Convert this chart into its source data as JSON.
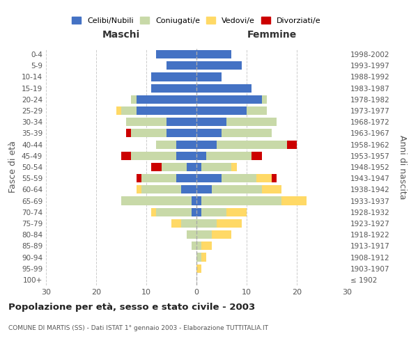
{
  "age_groups": [
    "100+",
    "95-99",
    "90-94",
    "85-89",
    "80-84",
    "75-79",
    "70-74",
    "65-69",
    "60-64",
    "55-59",
    "50-54",
    "45-49",
    "40-44",
    "35-39",
    "30-34",
    "25-29",
    "20-24",
    "15-19",
    "10-14",
    "5-9",
    "0-4"
  ],
  "birth_years": [
    "≤ 1902",
    "1903-1907",
    "1908-1912",
    "1913-1917",
    "1918-1922",
    "1923-1927",
    "1928-1932",
    "1933-1937",
    "1938-1942",
    "1943-1947",
    "1948-1952",
    "1953-1957",
    "1958-1962",
    "1963-1967",
    "1968-1972",
    "1973-1977",
    "1978-1982",
    "1983-1987",
    "1988-1992",
    "1993-1997",
    "1998-2002"
  ],
  "maschi": {
    "celibi": [
      0,
      0,
      0,
      0,
      0,
      0,
      1,
      1,
      3,
      4,
      2,
      4,
      4,
      6,
      6,
      12,
      12,
      9,
      9,
      6,
      8
    ],
    "coniugati": [
      0,
      0,
      0,
      1,
      2,
      3,
      7,
      14,
      8,
      7,
      5,
      9,
      4,
      7,
      8,
      3,
      1,
      0,
      0,
      0,
      0
    ],
    "vedovi": [
      0,
      0,
      0,
      0,
      0,
      2,
      1,
      0,
      1,
      0,
      0,
      0,
      0,
      0,
      0,
      1,
      0,
      0,
      0,
      0,
      0
    ],
    "divorziati": [
      0,
      0,
      0,
      0,
      0,
      0,
      0,
      0,
      0,
      1,
      2,
      2,
      0,
      1,
      0,
      0,
      0,
      0,
      0,
      0,
      0
    ]
  },
  "femmine": {
    "celibi": [
      0,
      0,
      0,
      0,
      0,
      0,
      1,
      1,
      3,
      5,
      1,
      2,
      4,
      5,
      6,
      10,
      13,
      11,
      5,
      9,
      7
    ],
    "coniugati": [
      0,
      0,
      1,
      1,
      3,
      4,
      5,
      16,
      10,
      7,
      6,
      9,
      14,
      10,
      10,
      4,
      1,
      0,
      0,
      0,
      0
    ],
    "vedovi": [
      0,
      1,
      1,
      2,
      4,
      5,
      4,
      5,
      4,
      3,
      1,
      0,
      0,
      0,
      0,
      0,
      0,
      0,
      0,
      0,
      0
    ],
    "divorziati": [
      0,
      0,
      0,
      0,
      0,
      0,
      0,
      0,
      0,
      1,
      0,
      2,
      2,
      0,
      0,
      0,
      0,
      0,
      0,
      0,
      0
    ]
  },
  "colors": {
    "celibi": "#4472c4",
    "coniugati": "#c8d9a8",
    "vedovi": "#ffd966",
    "divorziati": "#cc0000"
  },
  "xlim": 30,
  "title": "Popolazione per età, sesso e stato civile - 2003",
  "subtitle": "COMUNE DI MARTIS (SS) - Dati ISTAT 1° gennaio 2003 - Elaborazione TUTTITALIA.IT",
  "ylabel_left": "Fasce di età",
  "ylabel_right": "Anni di nascita",
  "legend_labels": [
    "Celibi/Nubili",
    "Coniugati/e",
    "Vedovi/e",
    "Divorziati/e"
  ],
  "maschi_label": "Maschi",
  "femmine_label": "Femmine",
  "background_color": "#ffffff",
  "grid_color": "#cccccc"
}
